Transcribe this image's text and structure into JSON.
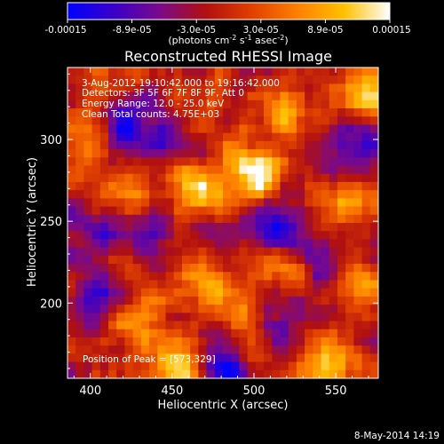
{
  "colorbar": {
    "ticks": [
      "-0.00015",
      "-8.9e-05",
      "-3.0e-05",
      "3.0e-05",
      "8.9e-05",
      "0.00015"
    ],
    "units_line1": "(photons cm",
    "units_exp1": "-2",
    "units_line2": " s",
    "units_exp2": "-1",
    "units_line3": " asec",
    "units_exp3": "-2",
    "units_close": ")",
    "stops": [
      "#0000ff",
      "#3a00c8",
      "#7a0a8a",
      "#b01010",
      "#e04000",
      "#ff8000",
      "#ffc000",
      "#ffffff"
    ]
  },
  "chart_data": {
    "type": "heatmap",
    "title": "Reconstructed RHESSI Image",
    "xlabel": "Heliocentric X (arcsec)",
    "ylabel": "Heliocentric Y (arcsec)",
    "xlim": [
      386,
      576
    ],
    "ylim": [
      154,
      344
    ],
    "xticks": [
      400,
      450,
      500,
      550
    ],
    "yticks": [
      200,
      250,
      300
    ],
    "annotations": [
      " 3-Aug-2012 19:10:42.000 to 19:16:42.000",
      "Detectors: 3F 5F 6F 7F 8F 9F, Att 0",
      "Energy Range: 12.0 - 25.0 keV",
      "Clean     Total counts: 4.75E+03"
    ],
    "peak_label": "Position of Peak = [573,329]",
    "peak": [
      573,
      329
    ],
    "value_range": [
      -0.00015,
      0.00015
    ],
    "hotspots": [
      {
        "x": 500,
        "y": 282,
        "v": 1.0
      },
      {
        "x": 465,
        "y": 270,
        "v": 0.7
      },
      {
        "x": 472,
        "y": 210,
        "v": 0.65
      },
      {
        "x": 520,
        "y": 215,
        "v": 0.6
      },
      {
        "x": 420,
        "y": 270,
        "v": 0.6
      },
      {
        "x": 430,
        "y": 190,
        "v": 0.6
      },
      {
        "x": 555,
        "y": 260,
        "v": 0.55
      },
      {
        "x": 545,
        "y": 165,
        "v": 0.7
      },
      {
        "x": 455,
        "y": 162,
        "v": 0.8
      },
      {
        "x": 573,
        "y": 329,
        "v": 0.85
      },
      {
        "x": 520,
        "y": 320,
        "v": 0.55
      },
      {
        "x": 400,
        "y": 310,
        "v": 0.5
      },
      {
        "x": 495,
        "y": 180,
        "v": 0.5
      },
      {
        "x": 565,
        "y": 215,
        "v": 0.6
      }
    ],
    "coldspots": [
      {
        "x": 420,
        "y": 310,
        "v": -0.8
      },
      {
        "x": 440,
        "y": 245,
        "v": -0.7
      },
      {
        "x": 405,
        "y": 250,
        "v": -0.6
      },
      {
        "x": 405,
        "y": 205,
        "v": -0.7
      },
      {
        "x": 480,
        "y": 163,
        "v": -0.9
      },
      {
        "x": 515,
        "y": 245,
        "v": -0.6
      },
      {
        "x": 540,
        "y": 225,
        "v": -0.7
      },
      {
        "x": 560,
        "y": 300,
        "v": -0.6
      },
      {
        "x": 450,
        "y": 300,
        "v": -0.5
      },
      {
        "x": 520,
        "y": 190,
        "v": -0.6
      }
    ]
  },
  "footer": {
    "timestamp": "8-May-2014 14:19"
  }
}
